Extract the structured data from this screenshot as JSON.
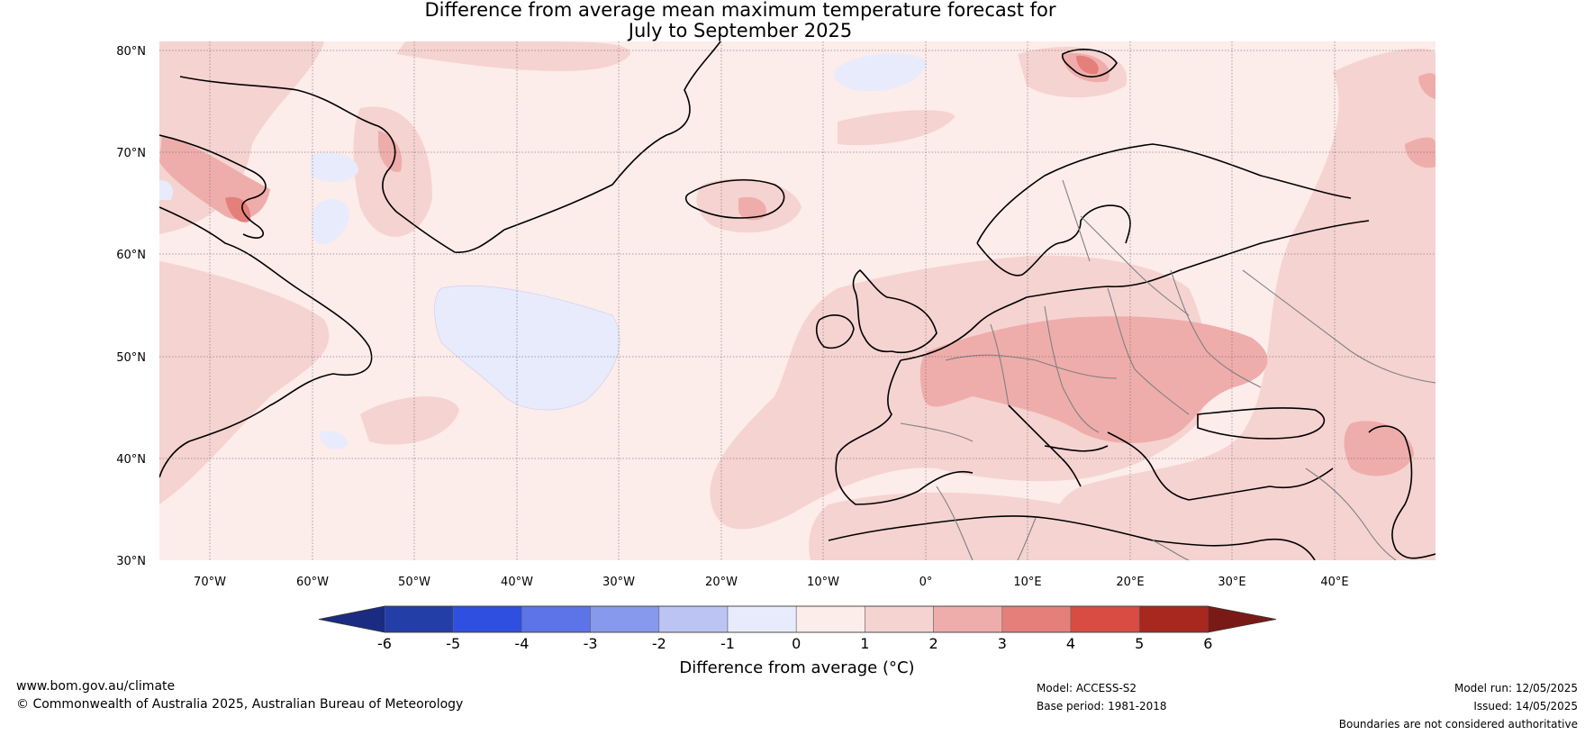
{
  "title_line1": "Difference from average mean maximum temperature forecast for",
  "title_line2": "July to September 2025",
  "lat_labels": [
    "80°N",
    "70°N",
    "60°N",
    "50°N",
    "40°N",
    "30°N"
  ],
  "lon_labels": [
    "70°W",
    "60°W",
    "50°W",
    "40°W",
    "30°W",
    "20°W",
    "10°W",
    "0°",
    "10°E",
    "20°E",
    "30°E",
    "40°E"
  ],
  "colorbar": {
    "ticks": [
      "-6",
      "-5",
      "-4",
      "-3",
      "-2",
      "-1",
      "0",
      "1",
      "2",
      "3",
      "4",
      "5",
      "6"
    ],
    "colors": [
      "#243ea8",
      "#2f4fe0",
      "#5c74e8",
      "#8699ec",
      "#bcc5f2",
      "#e8ebfb",
      "#fcecea",
      "#f5d3d1",
      "#eeadab",
      "#e47f79",
      "#d94c43",
      "#a8271f"
    ],
    "extend_low_color": "#1a2b82",
    "extend_high_color": "#7a1a16",
    "title": "Difference from average (°C)"
  },
  "footer": {
    "website": "www.bom.gov.au/climate",
    "copyright": "© Commonwealth of Australia 2025, Australian Bureau of Meteorology",
    "model": "Model: ACCESS-S2",
    "base_period": "Base period: 1981-2018",
    "model_run": "Model run: 12/05/2025",
    "issued": "Issued: 14/05/2025",
    "disclaimer": "Boundaries are not considered authoritative"
  },
  "map": {
    "background_anomaly_color": "#fcecea",
    "region": "North Atlantic and Europe"
  }
}
